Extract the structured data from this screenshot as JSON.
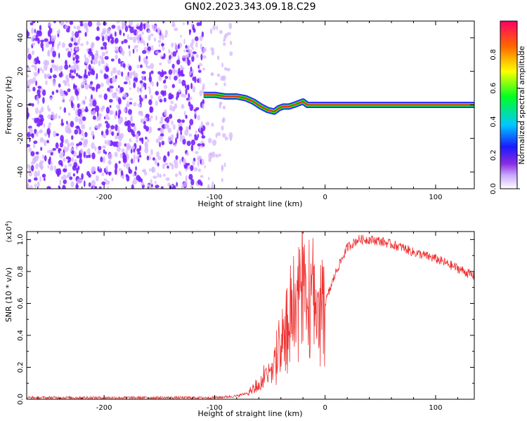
{
  "figure": {
    "title": "GN02.2023.343.09.18.C29"
  },
  "colors": {
    "noise": "#7a22ff",
    "noise_light": "#d6b6ff",
    "ridge": "#ff2a00",
    "snr_line": "#ee3333"
  },
  "chart_data": [
    {
      "type": "heatmap",
      "title": "",
      "xlabel": "Height of straight line (km)",
      "ylabel": "Frequency (Hz)",
      "xlim": [
        -270,
        135
      ],
      "ylim": [
        -50,
        50
      ],
      "xticks": [
        -200,
        -100,
        0,
        100
      ],
      "yticks": [
        -40,
        -20,
        0,
        20,
        40
      ],
      "grid": false,
      "noise_region_km": [
        -270,
        -85
      ],
      "ridge": {
        "x": [
          -110,
          -100,
          -90,
          -80,
          -72,
          -65,
          -58,
          -52,
          -46,
          -42,
          -38,
          -33,
          -28,
          -24,
          -20,
          -16,
          -12,
          -8,
          -4,
          0,
          10,
          20,
          40,
          60,
          80,
          100,
          135
        ],
        "y": [
          6,
          6,
          5,
          5,
          4,
          2,
          -1,
          -3,
          -4,
          -2,
          -1,
          -1,
          0,
          1,
          2,
          0,
          0,
          0,
          0,
          0,
          0,
          0,
          0,
          0,
          0,
          0,
          0
        ]
      },
      "colorbar": {
        "label": "Normalized spectral amplitude",
        "range": [
          0,
          1
        ],
        "ticks": [
          "0.0",
          "0.2",
          "0.4",
          "0.6",
          "0.8"
        ]
      }
    },
    {
      "type": "line",
      "title": "",
      "xlabel": "Height of straight line (km)",
      "ylabel": "SNR (10 * v/v)",
      "y_multiplier": "(x10",
      "y_multiplier_exp": "4",
      "y_multiplier_close": ")",
      "xlim": [
        -270,
        135
      ],
      "ylim": [
        0,
        1.05
      ],
      "xticks": [
        -200,
        -100,
        0,
        100
      ],
      "yticks": [
        "0.0",
        "0.2",
        "0.4",
        "0.6",
        "0.8",
        "1.0"
      ],
      "grid": false,
      "series": [
        {
          "x": [
            -270,
            -220,
            -150,
            -100,
            -80,
            -70,
            -60,
            -50,
            -40,
            -35,
            -30,
            -25,
            -20,
            -15,
            -10,
            -5,
            0,
            10,
            20,
            30,
            40,
            50,
            60,
            70,
            80,
            90,
            100,
            110,
            120,
            135
          ],
          "values": [
            0.01,
            0.01,
            0.01,
            0.01,
            0.02,
            0.04,
            0.1,
            0.2,
            0.35,
            0.45,
            0.6,
            0.65,
            0.8,
            0.75,
            0.7,
            0.6,
            0.6,
            0.8,
            0.95,
            1.0,
            1.0,
            0.99,
            0.97,
            0.95,
            0.92,
            0.9,
            0.88,
            0.85,
            0.82,
            0.77
          ]
        }
      ]
    }
  ]
}
